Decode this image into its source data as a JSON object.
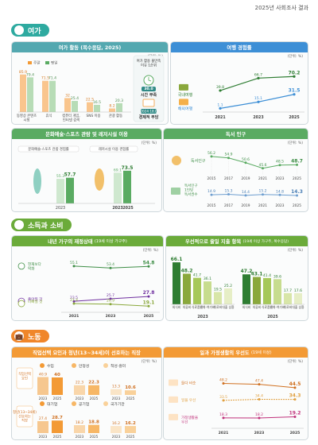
{
  "header": {
    "title": "2025년 사회조사 결과"
  },
  "sections": {
    "leisure": "여가",
    "income": "소득과 소비",
    "labor": "노동"
  },
  "colors": {
    "green": "#5aab62",
    "blue": "#3d8fd6",
    "orange": "#f39a35",
    "purple": "#7b6fb8",
    "olive": "#8aa83c",
    "lightblue": "#9fc6ea"
  },
  "panels": {
    "leisure_activity": {
      "title": "여가 활동 (복수응답, 2025)",
      "unit": "(단위: %)",
      "legend": [
        "주말",
        "평일"
      ],
      "side_title": "여가 활용 불만족 이유 1순위",
      "side_item1": "시간 부족",
      "side_item2": "경제적 부담",
      "side_badge1": "30.0",
      "side_badge2": "2024 18.0",
      "side_badge3": "2024 27.6"
    },
    "travel": {
      "title": "여행 경험률",
      "unit": "(단위: %)",
      "label_domestic": "국내여행",
      "label_overseas": "해외여행"
    },
    "culture": {
      "title": "문화예술·스포츠 관람 및 레저시설 이용",
      "unit": "(단위: %)",
      "legend1": "문화예술·스포츠 관람 경험률",
      "legend2": "레저시설 이용 경험률"
    },
    "reading": {
      "title": "독서 인구",
      "unit": "(단위: %)",
      "label1": "독서인구",
      "label2": "독서인구 1인당 독서권수"
    },
    "finance": {
      "title": "내년 가구의 재정상태",
      "sub": "(19세 이상 가구주)",
      "unit": "(단위: %)",
      "labels": [
        "현재보다 악화",
        "좋아질 것",
        "나빠질 것"
      ]
    },
    "cuts": {
      "title": "우선적으로 줄일 지출 항목",
      "sub": "(19세 이상 가구주, 복수응답)",
      "unit": "(단위: %)"
    },
    "jobs": {
      "title": "직업선택 요인과 청년(13~34세)이 선호하는 직장",
      "unit": "(단위: %)",
      "label_factor": "직업선택 요인",
      "label_pref": "청년(13~34세) 선호하는 직장",
      "items1": [
        "수입",
        "안정성",
        "적성·흥미"
      ],
      "items2": [
        "대기업",
        "공기업",
        "국가기관"
      ]
    },
    "worklife": {
      "title": "일과 가정생활의 우선도",
      "sub": "(19세 이상)",
      "unit": "(단위: %)",
      "labels": [
        "둘다 비슷",
        "일을 우선",
        "가정생활을 우선"
      ]
    }
  },
  "chart_data": [
    {
      "type": "bar",
      "title": "여가 활동 (복수응답, 2025)",
      "ylabel": "%",
      "categories": [
        "동영상 콘텐츠 시청",
        "휴식",
        "컴퓨터 게임, 인터넷 검색",
        "SNS 이용",
        "관광 활동"
      ],
      "series": [
        {
          "name": "주말",
          "values": [
            85.9,
            71.5,
            32.0,
            22.5,
            8.2
          ]
        },
        {
          "name": "평일",
          "values": [
            79.4,
            71.4,
            25.4,
            16.5,
            20.3
          ]
        }
      ]
    },
    {
      "type": "line",
      "title": "여행 경험률",
      "x": [
        "2021",
        "2023",
        "2025"
      ],
      "series": [
        {
          "name": "국내여행",
          "values": [
            39.8,
            66.7,
            70.2
          ]
        },
        {
          "name": "해외여행",
          "values": [
            1.1,
            15.1,
            31.5
          ]
        }
      ]
    },
    {
      "type": "bar",
      "title": "문화예술·스포츠 관람 및 레저시설 이용",
      "x": [
        "2023",
        "2025"
      ],
      "series": [
        {
          "name": "문화예술·스포츠 관람 경험률",
          "values": [
            55.3,
            57.7
          ]
        },
        {
          "name": "레저시설 이용 경험률",
          "values": [
            69.1,
            73.5
          ]
        }
      ]
    },
    {
      "type": "line",
      "title": "독서 인구",
      "x": [
        "2015",
        "2017",
        "2019",
        "2021",
        "2023",
        "2025"
      ],
      "series": [
        {
          "name": "독서인구",
          "values": [
            56.2,
            54.9,
            50.6,
            45.6,
            48.5,
            48.7
          ]
        },
        {
          "name": "독서인구 1인당 독서권수",
          "values": [
            14.9,
            15.3,
            14.4,
            15.2,
            14.8,
            14.3
          ]
        }
      ]
    },
    {
      "type": "line",
      "title": "내년 가구의 재정상태",
      "x": [
        "2021",
        "2023",
        "2025"
      ],
      "series": [
        {
          "name": "현재보다 악화",
          "values": [
            55.1,
            53.4,
            54.8
          ]
        },
        {
          "name": "좋아질 것",
          "values": [
            23.5,
            25.7,
            27.8
          ]
        },
        {
          "name": "나빠질 것",
          "values": [
            21.4,
            20.9,
            19.1
          ]
        }
      ]
    },
    {
      "type": "bar",
      "title": "우선적으로 줄일 지출 항목",
      "x": [
        "2023",
        "2025"
      ],
      "categories": [
        "외식비",
        "의류비",
        "식료품비",
        "문화·여가비",
        "의료비",
        "대출 상환"
      ],
      "series": [
        {
          "name": "2023",
          "values": [
            66.1,
            48.2,
            41.7,
            36.1,
            19.5,
            25.2
          ]
        },
        {
          "name": "2025",
          "values": [
            47.2,
            43.1,
            41.4,
            39.6,
            17.7,
            17.6
          ]
        }
      ]
    },
    {
      "type": "bar",
      "title": "직업선택 요인",
      "x": [
        "2023",
        "2025"
      ],
      "series": [
        {
          "name": "수입",
          "values": [
            40.9,
            40.0
          ]
        },
        {
          "name": "안정성",
          "values": [
            22.3,
            22.3
          ]
        },
        {
          "name": "적성·흥미",
          "values": [
            13.3,
            10.6
          ]
        }
      ]
    },
    {
      "type": "bar",
      "title": "청년 선호 직장",
      "x": [
        "2023",
        "2025"
      ],
      "series": [
        {
          "name": "대기업",
          "values": [
            27.4,
            28.7
          ]
        },
        {
          "name": "공기업",
          "values": [
            18.2,
            18.8
          ]
        },
        {
          "name": "국가기관",
          "values": [
            16.2,
            16.2
          ]
        }
      ]
    },
    {
      "type": "line",
      "title": "일과 가정생활의 우선도",
      "x": [
        "2021",
        "2023",
        "2025"
      ],
      "series": [
        {
          "name": "둘다 비슷",
          "values": [
            48.2,
            47.4,
            44.5
          ]
        },
        {
          "name": "일을 우선",
          "values": [
            33.5,
            34.4,
            34.3
          ]
        },
        {
          "name": "가정생활을 우선",
          "values": [
            18.3,
            18.2,
            19.2
          ]
        }
      ]
    }
  ]
}
